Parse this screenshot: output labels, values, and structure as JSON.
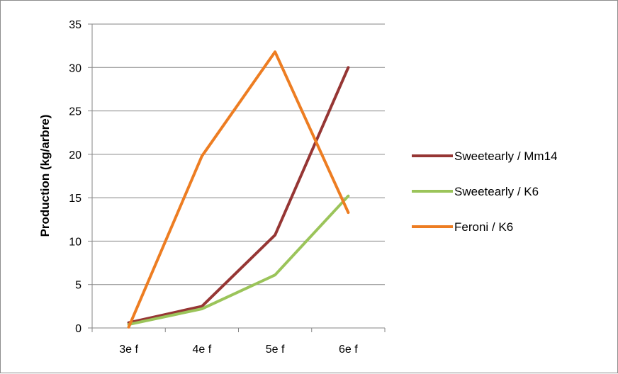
{
  "chart_data": {
    "type": "line",
    "title": "",
    "xlabel": "",
    "ylabel": "Production (kg/arbre)",
    "categories": [
      "3e f",
      "4e f",
      "5e f",
      "6e f"
    ],
    "ylim": [
      0,
      35
    ],
    "yticks": [
      0,
      5,
      10,
      15,
      20,
      25,
      30,
      35
    ],
    "grid": true,
    "legend_position": "right",
    "series": [
      {
        "name": "Sweetearly / Mm14",
        "color": "#963634",
        "values": [
          0.6,
          2.5,
          10.7,
          30.0
        ]
      },
      {
        "name": "Sweetearly / K6",
        "color": "#9BC45A",
        "values": [
          0.4,
          2.2,
          6.1,
          15.2
        ]
      },
      {
        "name": "Feroni / K6",
        "color": "#ED7D22",
        "values": [
          0.1,
          19.8,
          31.8,
          13.3
        ]
      }
    ]
  }
}
